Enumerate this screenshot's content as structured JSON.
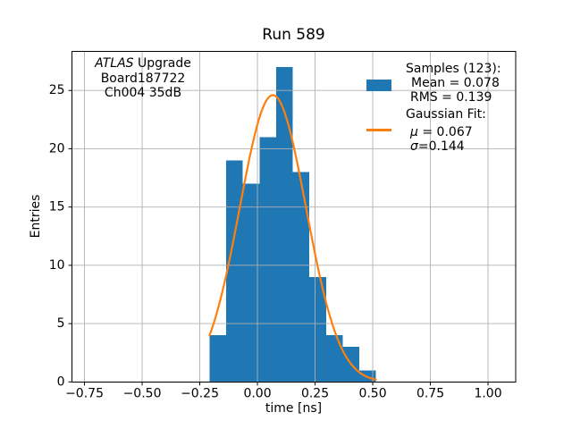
{
  "chart_data": {
    "type": "bar",
    "subtype": "histogram",
    "title": "Run 589",
    "xlabel": "time [ns]",
    "ylabel": "Entries",
    "xlim": [
      -0.804,
      1.12
    ],
    "ylim": [
      0,
      28.35
    ],
    "xticks": [
      -0.75,
      -0.5,
      -0.25,
      0.0,
      0.25,
      0.5,
      0.75,
      1.0
    ],
    "xtick_labels": [
      "−0.75",
      "−0.50",
      "−0.25",
      "0.00",
      "0.25",
      "0.50",
      "0.75",
      "1.00"
    ],
    "yticks": [
      0,
      5,
      10,
      15,
      20,
      25
    ],
    "ytick_labels": [
      "0",
      "5",
      "10",
      "15",
      "20",
      "25"
    ],
    "grid": true,
    "legend_position": "upper right",
    "bin_edges": [
      -0.208,
      -0.1358,
      -0.0636,
      0.0086,
      0.0808,
      0.153,
      0.2252,
      0.2974,
      0.3696,
      0.4418,
      0.514
    ],
    "counts": [
      4,
      19,
      17,
      21,
      27,
      18,
      9,
      4,
      3,
      1
    ],
    "n_samples": 123,
    "stats": {
      "mean": 0.078,
      "rms": 0.139
    },
    "fit": {
      "type": "gaussian",
      "mu": 0.067,
      "sigma": 0.144,
      "amplitude": 24.6,
      "x_range": [
        -0.208,
        0.514
      ]
    }
  },
  "annotation": {
    "line1_italic": "ATLAS",
    "line1_rest": " Upgrade",
    "line2": "Board187722",
    "line3": "Ch004 35dB"
  },
  "legend": {
    "samples_header": "Samples (123):",
    "mean_label": "Mean = 0.078",
    "rms_label": "RMS = 0.139",
    "fit_header": "Gaussian Fit:",
    "mu_symbol": "μ",
    "mu_rest": " = 0.067",
    "sigma_symbol": "σ",
    "sigma_rest": "=0.144"
  },
  "colors": {
    "histogram": "#1f77b4",
    "fit_line": "#ff7f0e",
    "grid": "#b0b0b0",
    "spine": "#000000",
    "text": "#000000"
  }
}
